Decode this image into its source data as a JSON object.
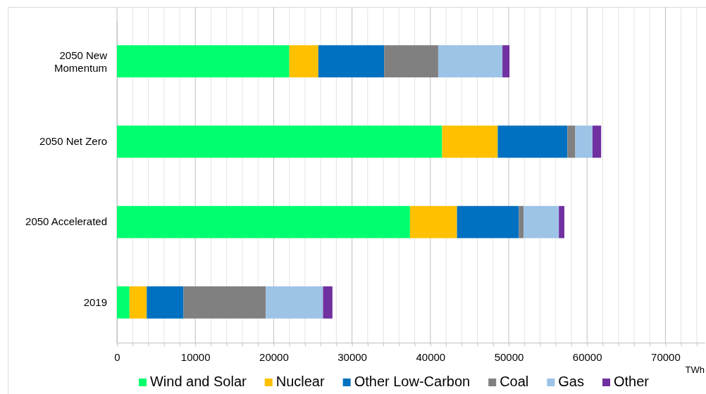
{
  "chart_data": {
    "type": "bar",
    "orientation": "horizontal",
    "stacked": true,
    "xlabel": "TWh",
    "categories": [
      "2050 New Momentum",
      "2050 Net Zero",
      "2050 Accelerated",
      "2019"
    ],
    "series": [
      {
        "name": "Wind and Solar",
        "color": "#00ff6e",
        "values": [
          22000,
          41500,
          37400,
          1600
        ]
      },
      {
        "name": "Nuclear",
        "color": "#ffc000",
        "values": [
          3700,
          7100,
          6000,
          2200
        ]
      },
      {
        "name": "Other Low-Carbon",
        "color": "#0070c0",
        "values": [
          8400,
          8900,
          7900,
          4700
        ]
      },
      {
        "name": "Coal",
        "color": "#808080",
        "values": [
          6900,
          1000,
          600,
          10500
        ]
      },
      {
        "name": "Gas",
        "color": "#9dc3e6",
        "values": [
          8200,
          2200,
          4500,
          7300
        ]
      },
      {
        "name": "Other",
        "color": "#7030a0",
        "values": [
          900,
          1100,
          700,
          1200
        ]
      }
    ],
    "xlim": [
      0,
      75000
    ],
    "xticks": [
      0,
      {
        "value": 2000,
        "label": null
      },
      {
        "value": 4000,
        "label": null
      },
      {
        "value": 6000,
        "label": null
      },
      {
        "value": 8000,
        "label": null
      },
      10000,
      {
        "value": 12000,
        "label": null
      },
      {
        "value": 14000,
        "label": null
      },
      {
        "value": 16000,
        "label": null
      },
      {
        "value": 18000,
        "label": null
      },
      20000,
      {
        "value": 22000,
        "label": null
      },
      {
        "value": 24000,
        "label": null
      },
      {
        "value": 26000,
        "label": null
      },
      {
        "value": 28000,
        "label": null
      },
      30000,
      {
        "value": 32000,
        "label": null
      },
      {
        "value": 34000,
        "label": null
      },
      {
        "value": 36000,
        "label": null
      },
      {
        "value": 38000,
        "label": null
      },
      40000,
      {
        "value": 42000,
        "label": null
      },
      {
        "value": 44000,
        "label": null
      },
      {
        "value": 46000,
        "label": null
      },
      {
        "value": 48000,
        "label": null
      },
      50000,
      {
        "value": 52000,
        "label": null
      },
      {
        "value": 54000,
        "label": null
      },
      {
        "value": 56000,
        "label": null
      },
      {
        "value": 58000,
        "label": null
      },
      60000,
      {
        "value": 62000,
        "label": null
      },
      {
        "value": 64000,
        "label": null
      },
      {
        "value": 66000,
        "label": null
      },
      {
        "value": 68000,
        "label": null
      },
      70000,
      {
        "value": 72000,
        "label": null
      },
      {
        "value": 74000,
        "label": null
      }
    ],
    "grid": true,
    "legend": "bottom"
  }
}
